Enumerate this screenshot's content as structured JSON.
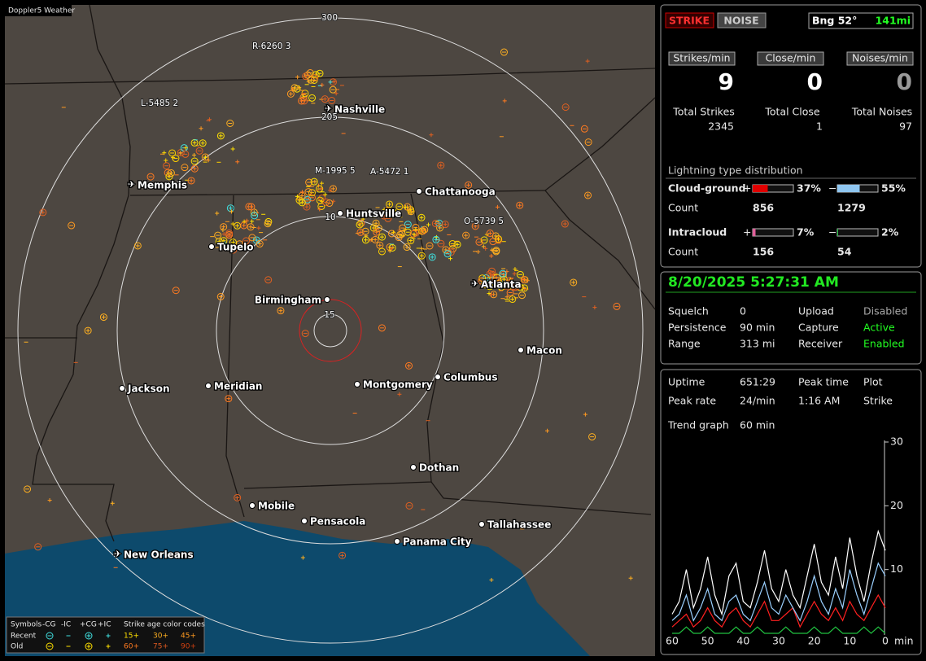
{
  "map": {
    "title": "Doppler5 Weather",
    "range_labels": [
      "300",
      "205",
      "10",
      "15"
    ],
    "cities": [
      {
        "name": "Nashville",
        "airport": true
      },
      {
        "name": "Memphis",
        "airport": true
      },
      {
        "name": "Chattanooga",
        "airport": false
      },
      {
        "name": "Huntsville",
        "airport": false
      },
      {
        "name": "Tupelo",
        "airport": false
      },
      {
        "name": "Atlanta",
        "airport": true
      },
      {
        "name": "Birmingham",
        "airport": false
      },
      {
        "name": "Macon",
        "airport": false
      },
      {
        "name": "Jackson",
        "airport": false
      },
      {
        "name": "Meridian",
        "airport": false
      },
      {
        "name": "Montgomery",
        "airport": false
      },
      {
        "name": "Columbus",
        "airport": false
      },
      {
        "name": "Dothan",
        "airport": false
      },
      {
        "name": "Mobile",
        "airport": false
      },
      {
        "name": "Pensacola",
        "airport": false
      },
      {
        "name": "Tallahassee",
        "airport": false
      },
      {
        "name": "Panama City",
        "airport": false
      },
      {
        "name": "New Orleans",
        "airport": true
      }
    ],
    "cells": [
      "R-6260 3",
      "L-5485 2",
      "M-1995 5",
      "A-5472 1",
      "O-5739 5"
    ],
    "legend": {
      "symbols_label": "Symbols",
      "symbol_headers": [
        "-CG",
        "-IC",
        "+CG",
        "+IC"
      ],
      "age_label": "Strike age color codes",
      "rows": [
        {
          "label": "Recent",
          "ages": [
            "15+",
            "30+",
            "45+"
          ]
        },
        {
          "label": "Old",
          "ages": [
            "60+",
            "75+",
            "90+"
          ]
        }
      ]
    }
  },
  "status": {
    "strike": "STRIKE",
    "noise": "NOISE",
    "bearing": "Bng 52°",
    "distance": "141mi"
  },
  "rates": [
    {
      "header": "Strikes/min",
      "value": 9,
      "total_label": "Total Strikes",
      "total": 2345
    },
    {
      "header": "Close/min",
      "value": 0,
      "total_label": "Total Close",
      "total": 1
    },
    {
      "header": "Noises/min",
      "value": 0,
      "total_label": "Total Noises",
      "total": 97
    }
  ],
  "distribution": {
    "title": "Lightning type distribution",
    "count_label": "Count",
    "pos_sign": "+",
    "neg_sign": "−",
    "rows": [
      {
        "label": "Cloud-ground",
        "pos_pct": 37,
        "pos_pct_label": "37%",
        "pos_color": "#e00000",
        "neg_pct": 55,
        "neg_pct_label": "55%",
        "neg_color": "#8fc6f0",
        "pos_count": 856,
        "neg_count": 1279
      },
      {
        "label": "Intracloud",
        "pos_pct": 7,
        "pos_pct_label": "7%",
        "pos_color": "#e0609a",
        "neg_pct": 2,
        "neg_pct_label": "2%",
        "neg_color": "#20c040",
        "pos_count": 156,
        "neg_count": 54
      }
    ]
  },
  "clock": "8/20/2025 5:27:31 AM",
  "settings": [
    [
      "Squelch",
      "0",
      "Upload",
      "Disabled"
    ],
    [
      "Persistence",
      "90 min",
      "Capture",
      "Active"
    ],
    [
      "Range",
      "313 mi",
      "Receiver",
      "Enabled"
    ]
  ],
  "stats": [
    [
      "Uptime",
      "651:29",
      "Peak time",
      "Plot"
    ],
    [
      "Peak rate",
      "24/min",
      "1:16 AM",
      "Strike"
    ]
  ],
  "trend": {
    "label": "Trend graph",
    "window": "60 min",
    "xlabel": "min",
    "xlim": [
      60,
      0
    ],
    "ylim": [
      0,
      30
    ],
    "xticks": [
      60,
      50,
      40,
      30,
      20,
      10,
      0
    ],
    "yticks": [
      10,
      20,
      30
    ],
    "x": [
      60,
      58,
      56,
      54,
      52,
      50,
      48,
      46,
      44,
      42,
      40,
      38,
      36,
      34,
      32,
      30,
      28,
      26,
      24,
      22,
      20,
      18,
      16,
      14,
      12,
      10,
      8,
      6,
      4,
      2,
      0
    ],
    "series": [
      {
        "color": "#20c040",
        "values": [
          0,
          0,
          1,
          0,
          0,
          1,
          0,
          0,
          0,
          1,
          0,
          0,
          1,
          0,
          0,
          0,
          1,
          0,
          0,
          0,
          1,
          0,
          0,
          1,
          0,
          0,
          0,
          1,
          0,
          1,
          0
        ]
      },
      {
        "color": "#ff2020",
        "values": [
          1,
          2,
          3,
          1,
          2,
          4,
          2,
          1,
          3,
          4,
          2,
          1,
          3,
          5,
          2,
          2,
          3,
          4,
          1,
          3,
          5,
          3,
          2,
          4,
          2,
          5,
          3,
          2,
          4,
          6,
          4
        ]
      },
      {
        "color": "#9bd0ff",
        "values": [
          2,
          3,
          6,
          2,
          4,
          7,
          3,
          2,
          5,
          6,
          3,
          2,
          5,
          8,
          4,
          3,
          6,
          4,
          2,
          5,
          9,
          5,
          3,
          7,
          4,
          10,
          6,
          3,
          7,
          11,
          9
        ]
      },
      {
        "color": "#ffffff",
        "values": [
          3,
          5,
          10,
          4,
          7,
          12,
          6,
          3,
          9,
          11,
          5,
          4,
          8,
          13,
          7,
          5,
          10,
          6,
          4,
          9,
          14,
          8,
          6,
          12,
          7,
          15,
          9,
          5,
          11,
          16,
          13
        ]
      }
    ]
  }
}
